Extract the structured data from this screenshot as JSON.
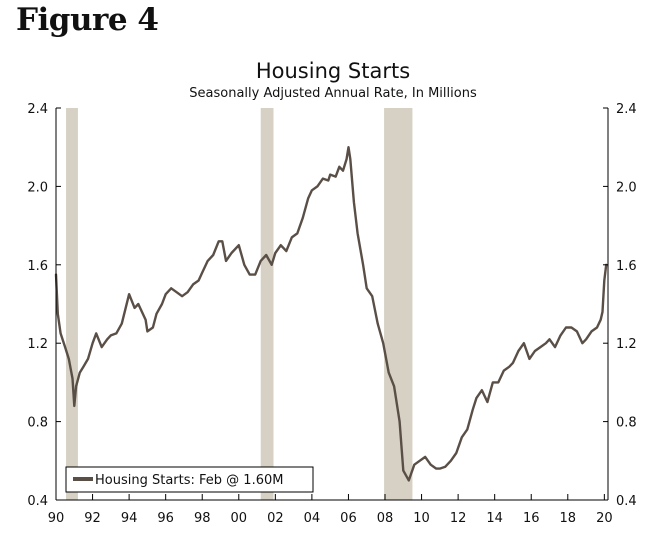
{
  "figure_label": "Figure 4",
  "chart_data": {
    "type": "line",
    "title": "Housing Starts",
    "subtitle": "Seasonally Adjusted Annual Rate, In Millions",
    "xlabel": "",
    "ylabel": "",
    "xlim": [
      1990,
      2020.2
    ],
    "ylim": [
      0.4,
      2.4
    ],
    "x_ticks": [
      1990,
      1992,
      1994,
      1996,
      1998,
      2000,
      2002,
      2004,
      2006,
      2008,
      2010,
      2012,
      2014,
      2016,
      2018,
      2020
    ],
    "x_tick_labels": [
      "90",
      "92",
      "94",
      "96",
      "98",
      "00",
      "02",
      "04",
      "06",
      "08",
      "10",
      "12",
      "14",
      "16",
      "18",
      "20"
    ],
    "y_ticks": [
      0.4,
      0.8,
      1.2,
      1.6,
      2.0,
      2.4
    ],
    "y_tick_labels": [
      "0.4",
      "0.8",
      "1.2",
      "1.6",
      "2.0",
      "2.4"
    ],
    "recessions": [
      [
        1990.55,
        1991.2
      ],
      [
        2001.2,
        2001.9
      ],
      [
        2007.95,
        2009.5
      ]
    ],
    "legend": {
      "label": "Housing Starts: Feb @ 1.60M",
      "position": "bottom-left"
    },
    "colors": {
      "line": "#5a4f47",
      "recession": "#d6d1c4",
      "axis": "#000000"
    },
    "series": [
      {
        "name": "Housing Starts",
        "x": [
          1990.0,
          1990.1,
          1990.25,
          1990.5,
          1990.7,
          1990.9,
          1991.0,
          1991.1,
          1991.3,
          1991.5,
          1991.75,
          1992.0,
          1992.2,
          1992.5,
          1992.8,
          1993.0,
          1993.3,
          1993.6,
          1994.0,
          1994.3,
          1994.5,
          1994.9,
          1995.0,
          1995.3,
          1995.5,
          1995.8,
          1996.0,
          1996.3,
          1996.6,
          1996.9,
          1997.2,
          1997.5,
          1997.8,
          1998.0,
          1998.3,
          1998.6,
          1998.9,
          1999.1,
          1999.3,
          1999.6,
          2000.0,
          2000.3,
          2000.6,
          2000.9,
          2001.2,
          2001.5,
          2001.8,
          2002.0,
          2002.3,
          2002.6,
          2002.9,
          2003.2,
          2003.5,
          2003.8,
          2004.0,
          2004.3,
          2004.6,
          2004.9,
          2005.0,
          2005.3,
          2005.5,
          2005.7,
          2005.9,
          2006.0,
          2006.1,
          2006.3,
          2006.5,
          2006.8,
          2007.0,
          2007.3,
          2007.6,
          2007.9,
          2008.2,
          2008.5,
          2008.8,
          2009.0,
          2009.3,
          2009.6,
          2009.9,
          2010.2,
          2010.5,
          2010.8,
          2011.0,
          2011.3,
          2011.6,
          2011.9,
          2012.2,
          2012.5,
          2012.8,
          2013.0,
          2013.3,
          2013.6,
          2013.9,
          2014.2,
          2014.5,
          2014.8,
          2015.0,
          2015.3,
          2015.6,
          2015.9,
          2016.2,
          2016.5,
          2016.8,
          2017.0,
          2017.3,
          2017.6,
          2017.9,
          2018.2,
          2018.5,
          2018.8,
          2019.0,
          2019.3,
          2019.6,
          2019.8,
          2019.9,
          2020.0,
          2020.1
        ],
        "values": [
          1.55,
          1.35,
          1.25,
          1.18,
          1.12,
          1.02,
          0.88,
          0.98,
          1.05,
          1.08,
          1.12,
          1.2,
          1.25,
          1.18,
          1.22,
          1.24,
          1.25,
          1.3,
          1.45,
          1.38,
          1.4,
          1.32,
          1.26,
          1.28,
          1.35,
          1.4,
          1.45,
          1.48,
          1.46,
          1.44,
          1.46,
          1.5,
          1.52,
          1.56,
          1.62,
          1.65,
          1.72,
          1.72,
          1.62,
          1.66,
          1.7,
          1.6,
          1.55,
          1.55,
          1.62,
          1.65,
          1.6,
          1.66,
          1.7,
          1.67,
          1.74,
          1.76,
          1.84,
          1.94,
          1.98,
          2.0,
          2.04,
          2.03,
          2.06,
          2.05,
          2.1,
          2.08,
          2.14,
          2.2,
          2.14,
          1.92,
          1.76,
          1.6,
          1.48,
          1.44,
          1.3,
          1.2,
          1.05,
          0.98,
          0.8,
          0.55,
          0.5,
          0.58,
          0.6,
          0.62,
          0.58,
          0.56,
          0.56,
          0.57,
          0.6,
          0.64,
          0.72,
          0.76,
          0.86,
          0.92,
          0.96,
          0.9,
          1.0,
          1.0,
          1.06,
          1.08,
          1.1,
          1.16,
          1.2,
          1.12,
          1.16,
          1.18,
          1.2,
          1.22,
          1.18,
          1.24,
          1.28,
          1.28,
          1.26,
          1.2,
          1.22,
          1.26,
          1.28,
          1.32,
          1.36,
          1.52,
          1.6
        ]
      }
    ]
  }
}
